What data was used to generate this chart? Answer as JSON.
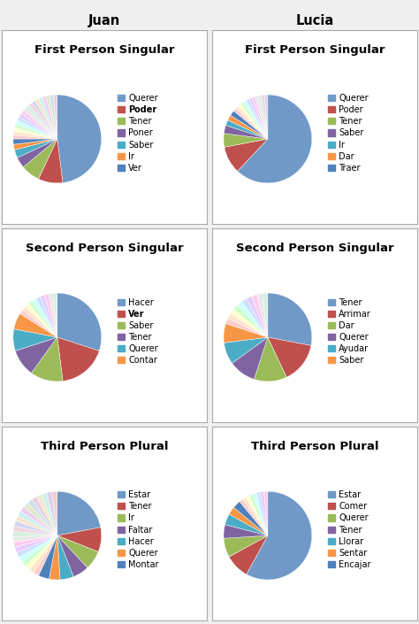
{
  "col_headers": [
    "Juan",
    "Lucia"
  ],
  "chart_rows": [
    {
      "title": "First Person Singular",
      "juan": {
        "legend": [
          "Querer",
          "Poder",
          "Tener",
          "Poner",
          "Saber",
          "Ir",
          "Ver"
        ],
        "main_vals": [
          48,
          9,
          7,
          4,
          3,
          2,
          2
        ],
        "thin_n": 18,
        "colors": [
          "#7099c8",
          "#c0504d",
          "#9bbb59",
          "#8064a2",
          "#4bacc6",
          "#f79646",
          "#4f81bd"
        ],
        "bold": [
          false,
          true,
          false,
          false,
          false,
          false,
          false
        ]
      },
      "lucia": {
        "legend": [
          "Querer",
          "Poder",
          "Tener",
          "Saber",
          "Ir",
          "Dar",
          "Traer"
        ],
        "main_vals": [
          62,
          10,
          5,
          3,
          2,
          2,
          2
        ],
        "thin_n": 12,
        "colors": [
          "#7099c8",
          "#c0504d",
          "#9bbb59",
          "#8064a2",
          "#4bacc6",
          "#f79646",
          "#4f81bd"
        ],
        "bold": [
          false,
          false,
          false,
          false,
          false,
          false,
          false
        ]
      }
    },
    {
      "title": "Second Person Singular",
      "juan": {
        "legend": [
          "Hacer",
          "Ver",
          "Saber",
          "Tener",
          "Querer",
          "Contar"
        ],
        "main_vals": [
          30,
          18,
          12,
          10,
          8,
          6
        ],
        "thin_n": 10,
        "colors": [
          "#7099c8",
          "#c0504d",
          "#9bbb59",
          "#8064a2",
          "#4bacc6",
          "#f79646"
        ],
        "bold": [
          false,
          true,
          false,
          false,
          false,
          false
        ]
      },
      "lucia": {
        "legend": [
          "Tener",
          "Arrimar",
          "Dar",
          "Querer",
          "Ayudar",
          "Saber"
        ],
        "main_vals": [
          28,
          15,
          12,
          10,
          8,
          7
        ],
        "thin_n": 10,
        "colors": [
          "#7099c8",
          "#c0504d",
          "#9bbb59",
          "#8064a2",
          "#4bacc6",
          "#f79646"
        ],
        "bold": [
          false,
          false,
          false,
          false,
          false,
          false
        ]
      }
    },
    {
      "title": "Third Person Plural",
      "juan": {
        "legend": [
          "Estar",
          "Tener",
          "Ir",
          "Faltar",
          "Hacer",
          "Querer",
          "Montar"
        ],
        "main_vals": [
          22,
          9,
          7,
          6,
          5,
          4,
          4
        ],
        "thin_n": 22,
        "colors": [
          "#7099c8",
          "#c0504d",
          "#9bbb59",
          "#8064a2",
          "#4bacc6",
          "#f79646",
          "#4f81bd"
        ],
        "bold": [
          false,
          false,
          false,
          false,
          false,
          false,
          false
        ]
      },
      "lucia": {
        "legend": [
          "Estar",
          "Comer",
          "Querer",
          "Tener",
          "Llorar",
          "Sentar",
          "Encajar"
        ],
        "main_vals": [
          58,
          9,
          7,
          5,
          4,
          3,
          3
        ],
        "thin_n": 8,
        "colors": [
          "#7099c8",
          "#c0504d",
          "#9bbb59",
          "#8064a2",
          "#4bacc6",
          "#f79646",
          "#4f81bd"
        ],
        "bold": [
          false,
          false,
          false,
          false,
          false,
          false,
          false
        ]
      }
    }
  ],
  "thin_colors": [
    "#ffcccc",
    "#ffe5cc",
    "#ffffcc",
    "#ccffcc",
    "#ccffff",
    "#cce0ff",
    "#e5ccff",
    "#ffccee",
    "#e8e8e8",
    "#d5f0e0",
    "#f0d5e0",
    "#d5d5f0",
    "#f5e6cc",
    "#ccf0f0",
    "#f0ccf0",
    "#e0e8d0",
    "#d0e0e8",
    "#e8d0e0",
    "#f0e8d0",
    "#d0f0e8",
    "#e0d0f0",
    "#f0d0d0",
    "#d0f0d0"
  ],
  "bg_color": "#f0f0f0",
  "panel_bg": "#ffffff",
  "title_fontsize": 9.5,
  "legend_fontsize": 7.0,
  "header_fontsize": 10.5
}
